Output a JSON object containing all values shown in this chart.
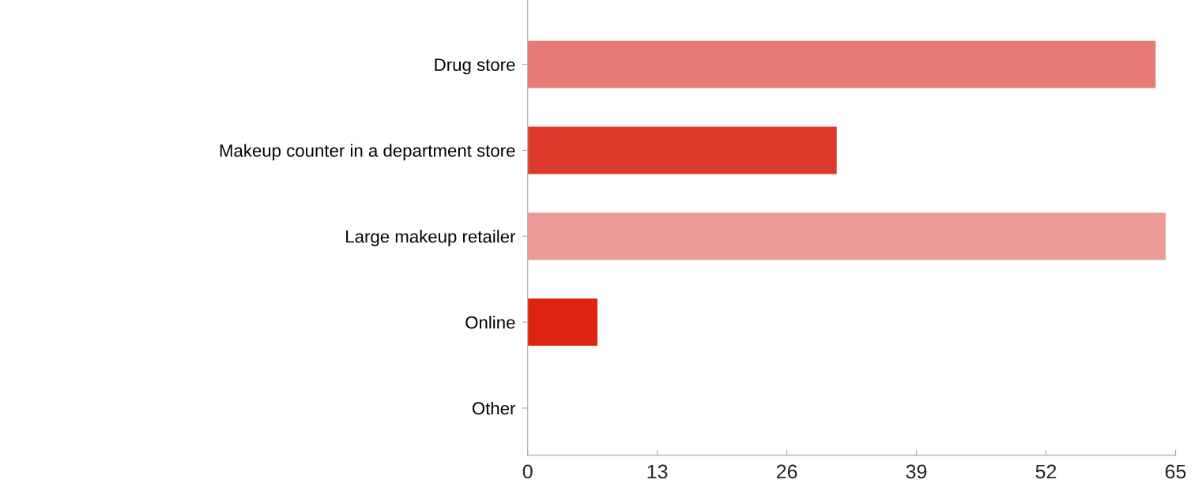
{
  "chart_data": {
    "type": "bar",
    "orientation": "horizontal",
    "categories": [
      "Drug store",
      "Makeup counter in a department store",
      "Large makeup retailer",
      "Online",
      "Other"
    ],
    "values": [
      63,
      31,
      64,
      7,
      0
    ],
    "colors": [
      "#e87a76",
      "#dd3a2c",
      "#ec9a96",
      "#dc2410",
      "#dc2410"
    ],
    "xlim": [
      0,
      65
    ],
    "xticks": [
      0,
      13,
      26,
      39,
      52,
      65
    ],
    "grid": false
  }
}
